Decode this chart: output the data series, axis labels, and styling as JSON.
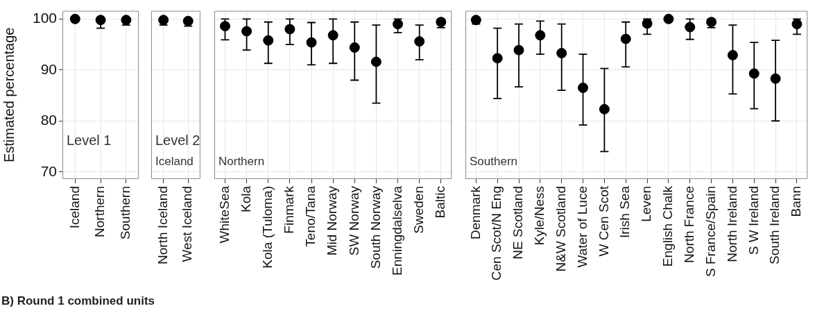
{
  "chart_data": [
    {
      "type": "scatter",
      "title": "Level 1",
      "ylabel": "Estimated percentage",
      "categories": [
        "Iceland",
        "Northern",
        "Southern"
      ],
      "values": [
        100,
        99.8,
        99.8
      ],
      "errors": [
        null,
        [
          98.2,
          100
        ],
        [
          98.8,
          100
        ]
      ],
      "color": "#000000",
      "marker": "circle",
      "ylim": [
        68.6,
        101.6
      ],
      "yticks": [
        70,
        80,
        90,
        100
      ],
      "grid": true,
      "legend": false,
      "annotations": [
        "B) Round 1 combined units"
      ]
    },
    {
      "type": "scatter",
      "title": "Level 2",
      "subtitle": "Iceland",
      "categories": [
        "North Iceland",
        "West Iceland"
      ],
      "values": [
        99.8,
        99.6
      ],
      "errors": [
        [
          98.8,
          100
        ],
        [
          98.6,
          99.6
        ]
      ],
      "color": "#000000",
      "marker": "circle",
      "ylim": [
        68.6,
        101.6
      ],
      "yticks": [
        70,
        80,
        90,
        100
      ],
      "grid": true,
      "legend": false,
      "tick_labels": "x"
    },
    {
      "type": "scatter",
      "subtitle": "Northern",
      "categories": [
        "WhiteSea",
        "Kola",
        "Kola (Tuloma)",
        "Finmark",
        "Teno/Tana",
        "Mid Norway",
        "SW Norway",
        "South Norway",
        "Enningdalselva",
        "Sweden",
        "Baltic"
      ],
      "values": [
        98.6,
        97.6,
        95.8,
        98.0,
        95.4,
        96.8,
        94.4,
        91.6,
        99.0,
        95.6,
        99.4
      ],
      "errors": [
        [
          95.9,
          100
        ],
        [
          93.9,
          100
        ],
        [
          91.3,
          99.4
        ],
        [
          95.0,
          100
        ],
        [
          91.0,
          99.3
        ],
        [
          91.3,
          100
        ],
        [
          88.0,
          99.4
        ],
        [
          83.5,
          98.8
        ],
        [
          97.3,
          100
        ],
        [
          92.0,
          98.8
        ],
        [
          98.3,
          100
        ]
      ],
      "color": "#000000",
      "marker": "circle",
      "ylim": [
        68.6,
        101.6
      ],
      "yticks": [
        70,
        80,
        90,
        100
      ],
      "grid": true,
      "legend": false,
      "tick_labels": "x"
    },
    {
      "type": "scatter",
      "subtitle": "Southern",
      "categories": [
        "Denmark",
        "Cen Scot/N Eng",
        "NE Scotland",
        "Kyle/Ness",
        "N&W Scotland",
        "Water of Luce",
        "W Cen Scot",
        "Irish Sea",
        "Leven",
        "English Chalk",
        "North France",
        "S France/Spain",
        "North Ireland",
        "S W Ireland",
        "South Ireland",
        "Bann"
      ],
      "values": [
        99.8,
        92.3,
        93.9,
        96.8,
        93.3,
        86.5,
        82.3,
        96.1,
        99.1,
        100,
        98.4,
        99.4,
        92.9,
        89.3,
        88.3,
        99.0
      ],
      "errors": [
        [
          99.0,
          99.8
        ],
        [
          84.4,
          98.2
        ],
        [
          86.7,
          99.0
        ],
        [
          93.1,
          99.6
        ],
        [
          86.0,
          99.0
        ],
        [
          79.2,
          93.1
        ],
        [
          74.0,
          90.3
        ],
        [
          90.6,
          99.4
        ],
        [
          97.0,
          100
        ],
        null,
        [
          96.0,
          100
        ],
        [
          98.3,
          100
        ],
        [
          85.3,
          98.8
        ],
        [
          82.4,
          95.4
        ],
        [
          80.0,
          95.8
        ],
        [
          97.0,
          100
        ]
      ],
      "color": "#000000",
      "marker": "circle",
      "ylim": [
        68.6,
        101.6
      ],
      "yticks": [
        70,
        80,
        90,
        100
      ],
      "grid": true,
      "legend": false,
      "tick_labels": "x"
    }
  ]
}
